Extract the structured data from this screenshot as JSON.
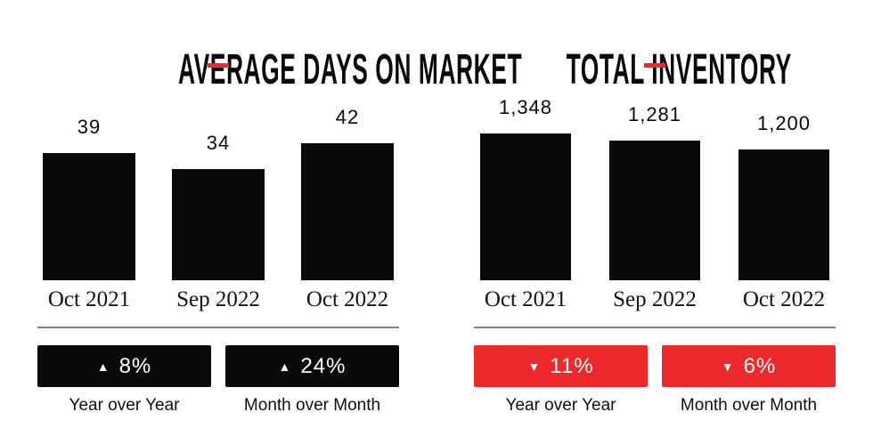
{
  "colors": {
    "bar_black": "#0a0a0a",
    "accent_red": "#ec2a2b",
    "divider_gray": "#7f7f7f",
    "background": "#ffffff"
  },
  "chart_data": [
    {
      "type": "bar",
      "title": "AVERAGE DAYS ON MARKET",
      "categories": [
        "Oct 2021",
        "Sep 2022",
        "Oct 2022"
      ],
      "values": [
        39,
        34,
        42
      ],
      "value_labels": [
        "39",
        "34",
        "42"
      ],
      "bar_color": "#0a0a0a",
      "ylim": [
        0,
        45
      ],
      "grid": false,
      "badges": [
        {
          "arrow": "▲",
          "direction": "up",
          "value": "8%",
          "label": "Year over Year",
          "color": "#0a0a0a"
        },
        {
          "arrow": "▲",
          "direction": "up",
          "value": "24%",
          "label": "Month over Month",
          "color": "#0a0a0a"
        }
      ]
    },
    {
      "type": "bar",
      "title": "TOTAL INVENTORY",
      "categories": [
        "Oct 2021",
        "Sep 2022",
        "Oct 2022"
      ],
      "values": [
        1348,
        1281,
        1200
      ],
      "value_labels": [
        "1,348",
        "1,281",
        "1,200"
      ],
      "bar_color": "#0a0a0a",
      "ylim": [
        0,
        1450
      ],
      "grid": false,
      "badges": [
        {
          "arrow": "▼",
          "direction": "down",
          "value": "11%",
          "label": "Year over Year",
          "color": "#ec2a2b"
        },
        {
          "arrow": "▼",
          "direction": "down",
          "value": "6%",
          "label": "Month over Month",
          "color": "#ec2a2b"
        }
      ]
    }
  ]
}
